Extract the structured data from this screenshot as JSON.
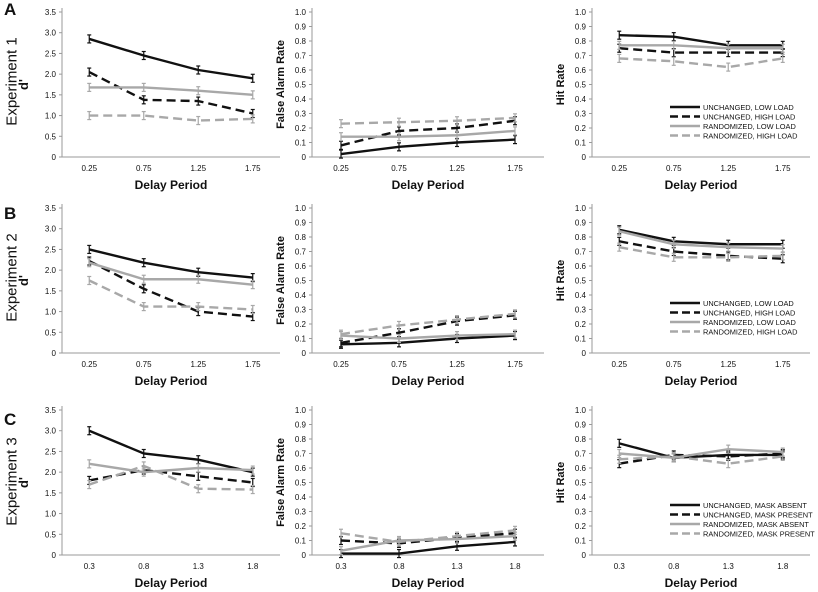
{
  "figure": {
    "rows": [
      {
        "letter": "A",
        "experiment": "Experiment 1"
      },
      {
        "letter": "B",
        "experiment": "Experiment 2"
      },
      {
        "letter": "C",
        "experiment": "Experiment 3"
      }
    ]
  },
  "chart_data": [
    {
      "type": "line",
      "row": 0,
      "col": 0,
      "xlabel": "Delay Period",
      "ylabel": "d'",
      "categories": [
        "0.25",
        "0.75",
        "1.25",
        "1.75"
      ],
      "ylim": [
        0,
        3.5
      ],
      "yticks": [
        "0",
        "0.5",
        "1.0",
        "1.5",
        "2.0",
        "2.5",
        "3.0",
        "3.5"
      ],
      "series": [
        {
          "style": "solid-black",
          "values": [
            2.85,
            2.45,
            2.1,
            1.9
          ]
        },
        {
          "style": "dashed-black",
          "values": [
            2.05,
            1.38,
            1.35,
            1.05
          ]
        },
        {
          "style": "solid-gray",
          "values": [
            1.68,
            1.68,
            1.6,
            1.5
          ]
        },
        {
          "style": "dashed-gray",
          "values": [
            1.0,
            1.0,
            0.88,
            0.92
          ]
        }
      ]
    },
    {
      "type": "line",
      "row": 0,
      "col": 1,
      "xlabel": "Delay Period",
      "ylabel": "False Alarm Rate",
      "categories": [
        "0.25",
        "0.75",
        "1.25",
        "1.75"
      ],
      "ylim": [
        0,
        1.0
      ],
      "yticks": [
        "0",
        "0.1",
        "0.2",
        "0.3",
        "0.4",
        "0.5",
        "0.6",
        "0.7",
        "0.8",
        "0.9",
        "1.0"
      ],
      "series": [
        {
          "style": "solid-black",
          "values": [
            0.02,
            0.07,
            0.1,
            0.12
          ]
        },
        {
          "style": "dashed-black",
          "values": [
            0.08,
            0.18,
            0.2,
            0.25
          ]
        },
        {
          "style": "solid-gray",
          "values": [
            0.14,
            0.14,
            0.15,
            0.18
          ]
        },
        {
          "style": "dashed-gray",
          "values": [
            0.23,
            0.24,
            0.25,
            0.27
          ]
        }
      ]
    },
    {
      "type": "line",
      "row": 0,
      "col": 2,
      "xlabel": "Delay Period",
      "ylabel": "Hit Rate",
      "categories": [
        "0.25",
        "0.75",
        "1.25",
        "1.75"
      ],
      "ylim": [
        0,
        1.0
      ],
      "yticks": [
        "0",
        "0.1",
        "0.2",
        "0.3",
        "0.4",
        "0.5",
        "0.6",
        "0.7",
        "0.8",
        "0.9",
        "1.0"
      ],
      "legend": [
        "UNCHANGED, LOW LOAD",
        "UNCHANGED, HIGH LOAD",
        "RANDOMIZED, LOW LOAD",
        "RANDOMIZED, HIGH LOAD"
      ],
      "series": [
        {
          "style": "solid-black",
          "values": [
            0.84,
            0.83,
            0.77,
            0.77
          ]
        },
        {
          "style": "dashed-black",
          "values": [
            0.75,
            0.72,
            0.72,
            0.72
          ]
        },
        {
          "style": "solid-gray",
          "values": [
            0.77,
            0.77,
            0.75,
            0.75
          ]
        },
        {
          "style": "dashed-gray",
          "values": [
            0.68,
            0.66,
            0.62,
            0.68
          ]
        }
      ]
    },
    {
      "type": "line",
      "row": 1,
      "col": 0,
      "xlabel": "Delay Period",
      "ylabel": "d'",
      "categories": [
        "0.25",
        "0.75",
        "1.25",
        "1.75"
      ],
      "ylim": [
        0,
        3.5
      ],
      "yticks": [
        "0",
        "0.5",
        "1.0",
        "1.5",
        "2.0",
        "2.5",
        "3.0",
        "3.5"
      ],
      "series": [
        {
          "style": "solid-black",
          "values": [
            2.5,
            2.18,
            1.95,
            1.82
          ]
        },
        {
          "style": "dashed-black",
          "values": [
            2.22,
            1.55,
            1.0,
            0.88
          ]
        },
        {
          "style": "solid-gray",
          "values": [
            2.18,
            1.78,
            1.78,
            1.65
          ]
        },
        {
          "style": "dashed-gray",
          "values": [
            1.75,
            1.12,
            1.12,
            1.05
          ]
        }
      ]
    },
    {
      "type": "line",
      "row": 1,
      "col": 1,
      "xlabel": "Delay Period",
      "ylabel": "False Alarm Rate",
      "categories": [
        "0.25",
        "0.75",
        "1.25",
        "1.75"
      ],
      "ylim": [
        0,
        1.0
      ],
      "yticks": [
        "0",
        "0.1",
        "0.2",
        "0.3",
        "0.4",
        "0.5",
        "0.6",
        "0.7",
        "0.8",
        "0.9",
        "1.0"
      ],
      "series": [
        {
          "style": "solid-black",
          "values": [
            0.06,
            0.07,
            0.1,
            0.12
          ]
        },
        {
          "style": "dashed-black",
          "values": [
            0.07,
            0.14,
            0.22,
            0.26
          ]
        },
        {
          "style": "solid-gray",
          "values": [
            0.12,
            0.1,
            0.12,
            0.13
          ]
        },
        {
          "style": "dashed-gray",
          "values": [
            0.13,
            0.19,
            0.23,
            0.27
          ]
        }
      ]
    },
    {
      "type": "line",
      "row": 1,
      "col": 2,
      "xlabel": "Delay Period",
      "ylabel": "Hit Rate",
      "categories": [
        "0.25",
        "0.75",
        "1.25",
        "1.75"
      ],
      "ylim": [
        0,
        1.0
      ],
      "yticks": [
        "0",
        "0.1",
        "0.2",
        "0.3",
        "0.4",
        "0.5",
        "0.6",
        "0.7",
        "0.8",
        "0.9",
        "1.0"
      ],
      "legend": [
        "UNCHANGED, LOW LOAD",
        "UNCHANGED, HIGH LOAD",
        "RANDOMIZED, LOW LOAD",
        "RANDOMIZED, HIGH LOAD"
      ],
      "series": [
        {
          "style": "solid-black",
          "values": [
            0.85,
            0.77,
            0.75,
            0.75
          ]
        },
        {
          "style": "dashed-black",
          "values": [
            0.77,
            0.7,
            0.67,
            0.65
          ]
        },
        {
          "style": "solid-gray",
          "values": [
            0.84,
            0.75,
            0.73,
            0.72
          ]
        },
        {
          "style": "dashed-gray",
          "values": [
            0.73,
            0.66,
            0.66,
            0.67
          ]
        }
      ]
    },
    {
      "type": "line",
      "row": 2,
      "col": 0,
      "xlabel": "Delay Period",
      "ylabel": "d'",
      "categories": [
        "0.3",
        "0.8",
        "1.3",
        "1.8"
      ],
      "ylim": [
        0,
        3.5
      ],
      "yticks": [
        "0",
        "0.5",
        "1.0",
        "1.5",
        "2.0",
        "2.5",
        "3.0",
        "3.5"
      ],
      "series": [
        {
          "style": "solid-black",
          "values": [
            3.0,
            2.45,
            2.3,
            2.0
          ]
        },
        {
          "style": "dashed-black",
          "values": [
            1.8,
            2.05,
            1.9,
            1.75
          ]
        },
        {
          "style": "solid-gray",
          "values": [
            2.2,
            2.0,
            2.1,
            2.05
          ]
        },
        {
          "style": "dashed-gray",
          "values": [
            1.7,
            2.15,
            1.6,
            1.58
          ]
        }
      ]
    },
    {
      "type": "line",
      "row": 2,
      "col": 1,
      "xlabel": "Delay Period",
      "ylabel": "False Alarm Rate",
      "categories": [
        "0.3",
        "0.8",
        "1.3",
        "1.8"
      ],
      "ylim": [
        0,
        1.0
      ],
      "yticks": [
        "0",
        "0.1",
        "0.2",
        "0.3",
        "0.4",
        "0.5",
        "0.6",
        "0.7",
        "0.8",
        "0.9",
        "1.0"
      ],
      "series": [
        {
          "style": "solid-black",
          "values": [
            0.01,
            0.01,
            0.06,
            0.09
          ]
        },
        {
          "style": "dashed-black",
          "values": [
            0.1,
            0.08,
            0.12,
            0.15
          ]
        },
        {
          "style": "solid-gray",
          "values": [
            0.03,
            0.1,
            0.11,
            0.13
          ]
        },
        {
          "style": "dashed-gray",
          "values": [
            0.15,
            0.09,
            0.13,
            0.17
          ]
        }
      ]
    },
    {
      "type": "line",
      "row": 2,
      "col": 2,
      "xlabel": "Delay Period",
      "ylabel": "Hit Rate",
      "categories": [
        "0.3",
        "0.8",
        "1.3",
        "1.8"
      ],
      "ylim": [
        0,
        1.0
      ],
      "yticks": [
        "0",
        "0.1",
        "0.2",
        "0.3",
        "0.4",
        "0.5",
        "0.6",
        "0.7",
        "0.8",
        "0.9",
        "1.0"
      ],
      "legend": [
        "UNCHANGED, MASK ABSENT",
        "UNCHANGED, MASK PRESENT",
        "RANDOMIZED, MASK ABSENT",
        "RANDOMIZED, MASK PRESENT"
      ],
      "series": [
        {
          "style": "solid-black",
          "values": [
            0.77,
            0.67,
            0.69,
            0.69
          ]
        },
        {
          "style": "dashed-black",
          "values": [
            0.63,
            0.69,
            0.68,
            0.7
          ]
        },
        {
          "style": "solid-gray",
          "values": [
            0.7,
            0.67,
            0.73,
            0.71
          ]
        },
        {
          "style": "dashed-gray",
          "values": [
            0.66,
            0.68,
            0.63,
            0.68
          ]
        }
      ]
    }
  ],
  "colors": {
    "black": "#111111",
    "gray": "#a8a8a8"
  }
}
